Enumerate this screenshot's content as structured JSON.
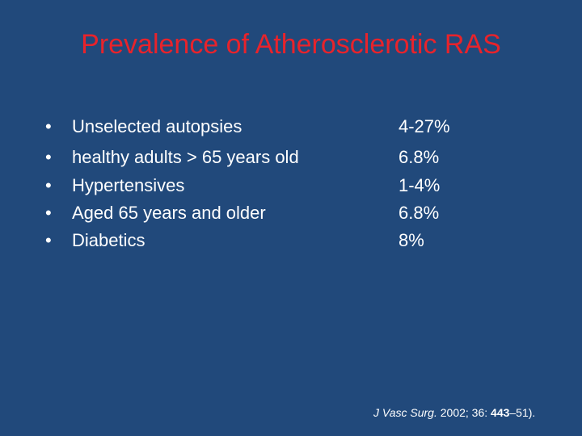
{
  "title": "Prevalence of Atherosclerotic RAS",
  "items": [
    {
      "label": "Unselected autopsies",
      "value": "4-27%"
    },
    {
      "label": "healthy adults > 65 years old",
      "value": "6.8%"
    },
    {
      "label": "Hypertensives",
      "value": "1-4%"
    },
    {
      "label": "Aged 65 years and older",
      "value": "6.8%"
    },
    {
      "label": "Diabetics",
      "value": "8%"
    }
  ],
  "citation": {
    "journal": "J Vasc Surg.",
    "year_volume": "2002; 36:",
    "pages_start": "443",
    "pages_end": "–51)."
  }
}
